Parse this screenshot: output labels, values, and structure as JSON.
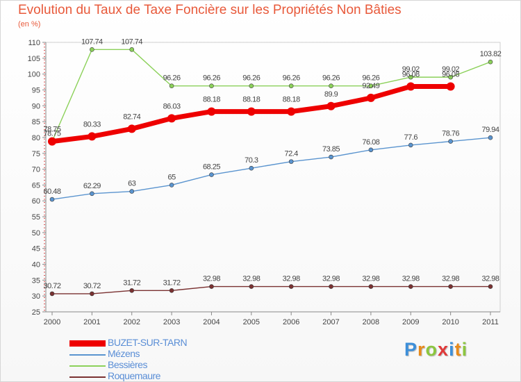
{
  "chart_data": {
    "type": "line",
    "title": "Evolution du Taux de Taxe Foncière sur les Propriétés Non Bâties",
    "ylabel": "(en %)",
    "x": [
      "2000",
      "2001",
      "2002",
      "2003",
      "2004",
      "2005",
      "2006",
      "2007",
      "2008",
      "2009",
      "2010",
      "2011"
    ],
    "ylim": [
      25,
      110
    ],
    "yticks": [
      25,
      30,
      35,
      40,
      45,
      50,
      55,
      60,
      65,
      70,
      75,
      80,
      85,
      90,
      95,
      100,
      105,
      110
    ],
    "grid": false,
    "legend": "bottom-left",
    "series": [
      {
        "name": "BUZET-SUR-TARN",
        "color": "#ee0000",
        "values": [
          78.75,
          80.33,
          82.74,
          86.03,
          88.18,
          88.18,
          88.18,
          89.9,
          92.49,
          96.08,
          96.08,
          null
        ],
        "labels": [
          "78.75",
          "80.33",
          "82.74",
          "86.03",
          "88.18",
          "88.18",
          "88.18",
          "89.9",
          "92.49",
          "96.08",
          "96.08",
          ""
        ]
      },
      {
        "name": "Mézens",
        "color": "#5a94cf",
        "values": [
          60.48,
          62.29,
          63,
          65,
          68.25,
          70.3,
          72.4,
          73.85,
          76.08,
          77.6,
          78.76,
          79.94
        ],
        "labels": [
          "60.48",
          "62.29",
          "63",
          "65",
          "68.25",
          "70.3",
          "72.4",
          "73.85",
          "76.08",
          "77.6",
          "78.76",
          "79.94"
        ]
      },
      {
        "name": "Bessières",
        "color": "#8cd15a",
        "values": [
          78.75,
          107.74,
          107.74,
          96.26,
          96.26,
          96.26,
          96.26,
          96.26,
          96.26,
          99.02,
          99.02,
          103.82
        ],
        "labels": [
          "78.75",
          "107.74",
          "107.74",
          "96.26",
          "96.26",
          "96.26",
          "96.26",
          "96.26",
          "96.26",
          "99.02",
          "99.02",
          "103.82"
        ]
      },
      {
        "name": "Roquemaure",
        "color": "#7a3131",
        "values": [
          30.72,
          30.72,
          31.72,
          31.72,
          32.98,
          32.98,
          32.98,
          32.98,
          32.98,
          32.98,
          32.98,
          32.98
        ],
        "labels": [
          "30.72",
          "30.72",
          "31.72",
          "31.72",
          "32.98",
          "32.98",
          "32.98",
          "32.98",
          "32.98",
          "32.98",
          "32.98",
          "32.98"
        ]
      }
    ]
  },
  "brand": {
    "letters": [
      {
        "ch": "P",
        "color": "#3d8fd9"
      },
      {
        "ch": "r",
        "color": "#e88a1a"
      },
      {
        "ch": "o",
        "color": "#8cc63f"
      },
      {
        "ch": "x",
        "color": "#e03a3a"
      },
      {
        "ch": "i",
        "color": "#3d8fd9"
      },
      {
        "ch": "t",
        "color": "#e88a1a"
      },
      {
        "ch": "i",
        "color": "#8cc63f"
      }
    ]
  }
}
